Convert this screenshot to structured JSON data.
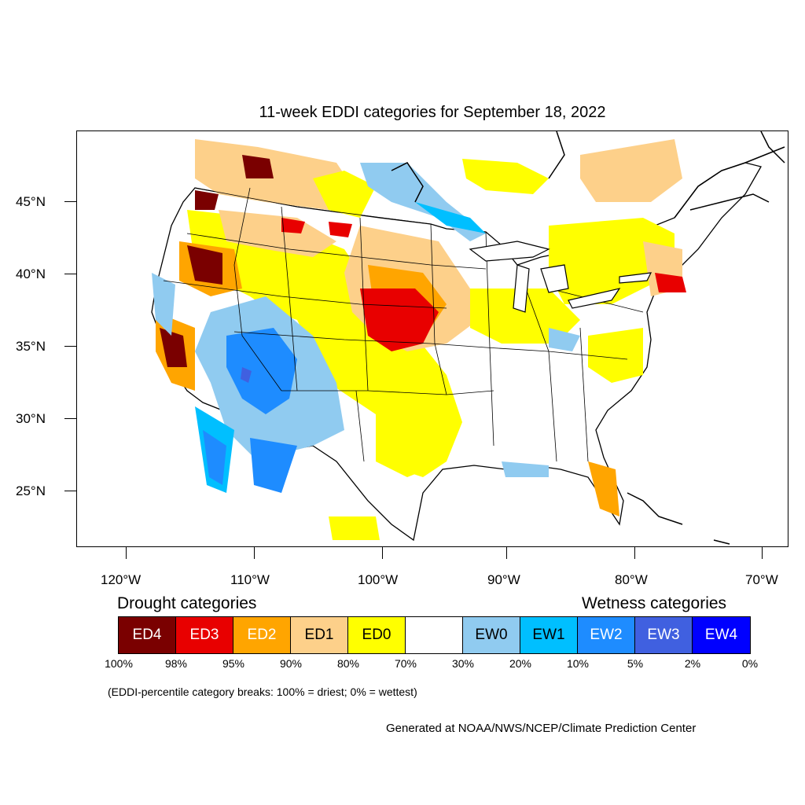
{
  "title": "11-week EDDI categories for September 18, 2022",
  "colors": {
    "ED4": "#7a0000",
    "ED3": "#e80000",
    "ED2": "#ffa500",
    "ED1": "#fdd08a",
    "ED0": "#ffff00",
    "neutral": "#ffffff",
    "EW0": "#90cbf0",
    "EW1": "#00bfff",
    "EW2": "#1e8cff",
    "EW3": "#4060e0",
    "EW4": "#0000ff"
  },
  "map": {
    "lat_labels": [
      "45°N",
      "40°N",
      "35°N",
      "30°N",
      "25°N"
    ],
    "lon_labels": [
      "120°W",
      "110°W",
      "100°W",
      "90°W",
      "80°W",
      "70°W"
    ]
  },
  "legend": {
    "drought_heading": "Drought categories",
    "wetness_heading": "Wetness categories",
    "boxes": [
      {
        "label": "ED4",
        "color": "#7a0000",
        "text_color": "#ffffff"
      },
      {
        "label": "ED3",
        "color": "#e80000",
        "text_color": "#ffffff"
      },
      {
        "label": "ED2",
        "color": "#ffa500",
        "text_color": "#ffffff"
      },
      {
        "label": "ED1",
        "color": "#fdd08a",
        "text_color": "#000000"
      },
      {
        "label": "ED0",
        "color": "#ffff00",
        "text_color": "#000000"
      },
      {
        "label": "",
        "color": "#ffffff",
        "text_color": "#000000"
      },
      {
        "label": "EW0",
        "color": "#90cbf0",
        "text_color": "#000000"
      },
      {
        "label": "EW1",
        "color": "#00bfff",
        "text_color": "#000000"
      },
      {
        "label": "EW2",
        "color": "#1e8cff",
        "text_color": "#ffffff"
      },
      {
        "label": "EW3",
        "color": "#4060e0",
        "text_color": "#ffffff"
      },
      {
        "label": "EW4",
        "color": "#0000ff",
        "text_color": "#ffffff"
      }
    ],
    "percentiles": [
      "100%",
      "98%",
      "95%",
      "90%",
      "80%",
      "70%",
      "30%",
      "20%",
      "10%",
      "5%",
      "2%",
      "0%"
    ]
  },
  "note": "(EDDI-percentile category breaks: 100% = driest; 0% = wettest)",
  "credit": "Generated at NOAA/NWS/NCEP/Climate Prediction Center"
}
